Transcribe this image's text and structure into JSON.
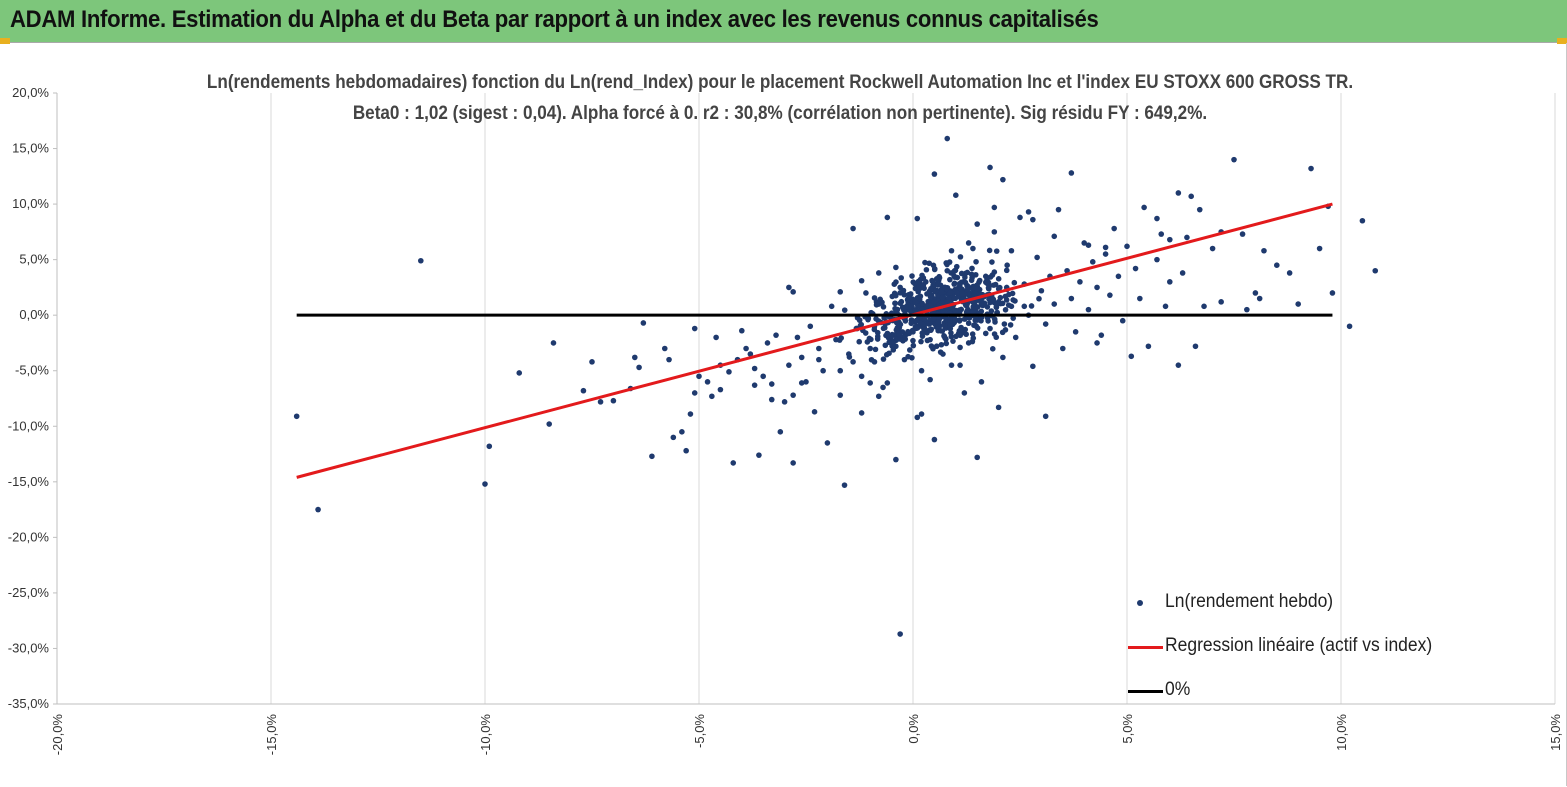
{
  "banner": {
    "title": "ADAM Informe. Estimation du Alpha et du Beta par rapport à un index avec les revenus connus capitalisés",
    "color": "#7dc67b"
  },
  "chart_data": {
    "type": "scatter",
    "title": "Ln(rendements hebdomadaires) fonction du Ln(rend_Index) pour le placement Rockwell Automation Inc et l'index EU STOXX 600 GROSS TR.",
    "subtitle": "Beta0 : 1,02 (sigest : 0,04). Alpha forcé à 0. r2 : 30,8% (corrélation non pertinente). Sig résidu FY : 649,2%.",
    "xlim": [
      -0.2,
      0.15
    ],
    "ylim": [
      -0.35,
      0.2
    ],
    "x_ticks": [
      -0.2,
      -0.15,
      -0.1,
      -0.05,
      0.0,
      0.05,
      0.1,
      0.15
    ],
    "x_tick_labels": [
      "-20,0%",
      "-15,0%",
      "-10,0%",
      "-5,0%",
      "0,0%",
      "5,0%",
      "10,0%",
      "15,0%"
    ],
    "y_ticks": [
      0.2,
      0.15,
      0.1,
      0.05,
      0.0,
      -0.05,
      -0.1,
      -0.15,
      -0.2,
      -0.25,
      -0.3,
      -0.35
    ],
    "y_tick_labels": [
      "20,0%",
      "15,0%",
      "10,0%",
      "5,0%",
      "0,0%",
      "-5,0%",
      "-10,0%",
      "-15,0%",
      "-20,0%",
      "-25,0%",
      "-30,0%",
      "-35,0%"
    ],
    "grid": "vertical",
    "legend_position": "bottom-right",
    "series": [
      {
        "name": "Ln(rendement hebdo)",
        "kind": "scatter",
        "color": "#1f3a6e",
        "points": [
          [
            -0.144,
            -0.091
          ],
          [
            -0.139,
            -0.175
          ],
          [
            -0.115,
            0.049
          ],
          [
            -0.1,
            -0.152
          ],
          [
            -0.099,
            -0.118
          ],
          [
            -0.092,
            -0.052
          ],
          [
            -0.085,
            -0.098
          ],
          [
            -0.084,
            -0.025
          ],
          [
            -0.075,
            -0.042
          ],
          [
            -0.073,
            -0.078
          ],
          [
            -0.07,
            -0.077
          ],
          [
            -0.065,
            -0.038
          ],
          [
            -0.064,
            -0.047
          ],
          [
            -0.063,
            -0.007
          ],
          [
            -0.061,
            -0.127
          ],
          [
            -0.058,
            -0.03
          ],
          [
            -0.057,
            -0.04
          ],
          [
            -0.056,
            -0.11
          ],
          [
            -0.054,
            -0.105
          ],
          [
            -0.053,
            -0.122
          ],
          [
            -0.052,
            -0.089
          ],
          [
            -0.051,
            -0.012
          ],
          [
            -0.05,
            -0.055
          ],
          [
            -0.048,
            -0.06
          ],
          [
            -0.047,
            -0.073
          ],
          [
            -0.046,
            -0.02
          ],
          [
            -0.045,
            -0.067
          ],
          [
            -0.043,
            -0.051
          ],
          [
            -0.042,
            -0.133
          ],
          [
            -0.041,
            -0.04
          ],
          [
            -0.04,
            -0.014
          ],
          [
            -0.039,
            -0.03
          ],
          [
            -0.038,
            -0.035
          ],
          [
            -0.037,
            -0.048
          ],
          [
            -0.036,
            -0.126
          ],
          [
            -0.035,
            -0.055
          ],
          [
            -0.034,
            -0.025
          ],
          [
            -0.033,
            -0.062
          ],
          [
            -0.032,
            -0.018
          ],
          [
            -0.031,
            -0.105
          ],
          [
            -0.03,
            -0.078
          ],
          [
            -0.029,
            -0.045
          ],
          [
            -0.028,
            -0.133
          ],
          [
            -0.027,
            -0.02
          ],
          [
            -0.026,
            -0.038
          ],
          [
            -0.025,
            -0.06
          ],
          [
            -0.024,
            -0.01
          ],
          [
            -0.023,
            -0.087
          ],
          [
            -0.022,
            -0.03
          ],
          [
            -0.021,
            -0.05
          ],
          [
            -0.02,
            -0.115
          ],
          [
            -0.019,
            0.008
          ],
          [
            -0.018,
            -0.022
          ],
          [
            -0.017,
            -0.072
          ],
          [
            -0.016,
            -0.153
          ],
          [
            -0.015,
            -0.035
          ],
          [
            -0.014,
            0.078
          ],
          [
            -0.013,
            -0.012
          ],
          [
            -0.012,
            -0.055
          ],
          [
            -0.011,
            0.02
          ],
          [
            -0.01,
            -0.03
          ],
          [
            -0.009,
            -0.042
          ],
          [
            -0.008,
            0.01
          ],
          [
            -0.007,
            -0.065
          ],
          [
            -0.006,
            0.088
          ],
          [
            -0.005,
            -0.018
          ],
          [
            -0.004,
            -0.028
          ],
          [
            -0.003,
            0.025
          ],
          [
            -0.002,
            -0.04
          ],
          [
            -0.001,
            0.005
          ],
          [
            0.0,
            -0.015
          ],
          [
            0.001,
            0.087
          ],
          [
            0.002,
            -0.05
          ],
          [
            0.003,
            0.03
          ],
          [
            0.004,
            -0.022
          ],
          [
            0.005,
            -0.112
          ],
          [
            0.006,
            0.012
          ],
          [
            0.007,
            -0.035
          ],
          [
            0.008,
            0.04
          ],
          [
            0.009,
            -0.008
          ],
          [
            0.01,
            0.108
          ],
          [
            0.011,
            -0.045
          ],
          [
            0.012,
            0.018
          ],
          [
            0.013,
            -0.025
          ],
          [
            0.014,
            0.06
          ],
          [
            0.015,
            0.002
          ],
          [
            0.016,
            -0.06
          ],
          [
            0.017,
            0.035
          ],
          [
            0.018,
            -0.012
          ],
          [
            0.019,
            0.075
          ],
          [
            0.02,
            0.012
          ],
          [
            0.021,
            -0.038
          ],
          [
            0.022,
            0.045
          ],
          [
            0.023,
            0.008
          ],
          [
            0.024,
            -0.02
          ],
          [
            0.025,
            0.088
          ],
          [
            0.026,
            0.028
          ],
          [
            0.027,
            0.0
          ],
          [
            0.028,
            -0.046
          ],
          [
            0.029,
            0.052
          ],
          [
            0.03,
            0.022
          ],
          [
            0.031,
            -0.008
          ],
          [
            0.032,
            0.035
          ],
          [
            0.033,
            0.01
          ],
          [
            0.034,
            0.095
          ],
          [
            0.035,
            -0.03
          ],
          [
            0.036,
            0.04
          ],
          [
            0.037,
            0.015
          ],
          [
            0.038,
            -0.015
          ],
          [
            0.039,
            0.03
          ],
          [
            0.04,
            0.065
          ],
          [
            0.041,
            0.005
          ],
          [
            0.042,
            0.048
          ],
          [
            0.043,
            0.025
          ],
          [
            0.044,
            -0.018
          ],
          [
            0.045,
            0.055
          ],
          [
            0.046,
            0.018
          ],
          [
            0.047,
            0.078
          ],
          [
            0.048,
            0.035
          ],
          [
            0.049,
            -0.005
          ],
          [
            0.05,
            0.062
          ],
          [
            0.052,
            0.042
          ],
          [
            0.053,
            0.015
          ],
          [
            0.055,
            -0.028
          ],
          [
            0.057,
            0.05
          ],
          [
            0.06,
            0.03
          ],
          [
            0.062,
            0.11
          ],
          [
            0.064,
            0.07
          ],
          [
            0.066,
            -0.028
          ],
          [
            0.067,
            0.095
          ],
          [
            0.07,
            0.06
          ],
          [
            0.072,
            0.075
          ],
          [
            0.075,
            0.14
          ],
          [
            0.078,
            0.005
          ],
          [
            0.08,
            0.02
          ],
          [
            0.085,
            0.045
          ],
          [
            0.088,
            0.038
          ],
          [
            0.09,
            0.01
          ],
          [
            0.093,
            0.132
          ],
          [
            0.095,
            0.06
          ],
          [
            0.098,
            0.02
          ],
          [
            0.102,
            -0.01
          ],
          [
            0.105,
            0.085
          ],
          [
            0.108,
            0.04
          ],
          [
            -0.003,
            -0.287
          ],
          [
            0.001,
            -0.092
          ],
          [
            0.015,
            -0.128
          ],
          [
            0.043,
            -0.025
          ],
          [
            0.051,
            -0.037
          ],
          [
            0.054,
            0.097
          ],
          [
            0.057,
            0.087
          ],
          [
            0.058,
            0.073
          ],
          [
            0.059,
            0.008
          ],
          [
            0.06,
            0.068
          ],
          [
            0.062,
            -0.045
          ],
          [
            0.063,
            0.038
          ],
          [
            0.065,
            0.107
          ],
          [
            0.068,
            0.008
          ],
          [
            0.072,
            0.012
          ],
          [
            0.077,
            0.073
          ],
          [
            0.081,
            0.015
          ],
          [
            0.082,
            0.058
          ],
          [
            0.097,
            0.098
          ],
          [
            0.008,
            0.159
          ],
          [
            0.005,
            0.127
          ],
          [
            0.021,
            0.122
          ],
          [
            0.028,
            0.086
          ],
          [
            0.018,
            0.133
          ],
          [
            0.037,
            0.128
          ],
          [
            0.027,
            0.093
          ],
          [
            0.033,
            0.071
          ],
          [
            0.026,
            0.008
          ],
          [
            0.031,
            -0.091
          ],
          [
            0.02,
            -0.083
          ],
          [
            0.012,
            -0.07
          ],
          [
            0.009,
            -0.045
          ],
          [
            0.011,
            -0.029
          ],
          [
            0.004,
            -0.058
          ],
          [
            0.002,
            -0.089
          ],
          [
            -0.004,
            -0.13
          ],
          [
            -0.006,
            -0.061
          ],
          [
            -0.008,
            -0.073
          ],
          [
            -0.01,
            -0.061
          ],
          [
            -0.012,
            -0.088
          ],
          [
            -0.014,
            -0.042
          ],
          [
            -0.017,
            -0.05
          ],
          [
            -0.022,
            -0.04
          ],
          [
            -0.026,
            -0.061
          ],
          [
            -0.028,
            -0.072
          ],
          [
            -0.033,
            -0.076
          ],
          [
            -0.037,
            -0.063
          ],
          [
            -0.045,
            -0.045
          ],
          [
            -0.051,
            -0.07
          ],
          [
            -0.066,
            -0.066
          ],
          [
            -0.077,
            -0.068
          ],
          [
            -0.029,
            0.025
          ],
          [
            -0.028,
            0.021
          ],
          [
            -0.017,
            0.021
          ],
          [
            -0.012,
            0.031
          ],
          [
            -0.008,
            0.038
          ],
          [
            -0.004,
            0.043
          ],
          [
            0.009,
            0.058
          ],
          [
            0.013,
            0.065
          ],
          [
            0.015,
            0.082
          ],
          [
            0.019,
            0.097
          ],
          [
            0.023,
            0.058
          ],
          [
            0.041,
            0.063
          ],
          [
            0.045,
            0.061
          ]
        ]
      },
      {
        "name": "Regression linéaire (actif vs index)",
        "kind": "line",
        "color": "#e31a1c",
        "points": [
          [
            -0.144,
            -0.146
          ],
          [
            0.098,
            0.1
          ]
        ]
      },
      {
        "name": "0%",
        "kind": "line",
        "color": "#000000",
        "points": [
          [
            -0.144,
            0.0
          ],
          [
            0.098,
            0.0
          ]
        ]
      }
    ]
  }
}
